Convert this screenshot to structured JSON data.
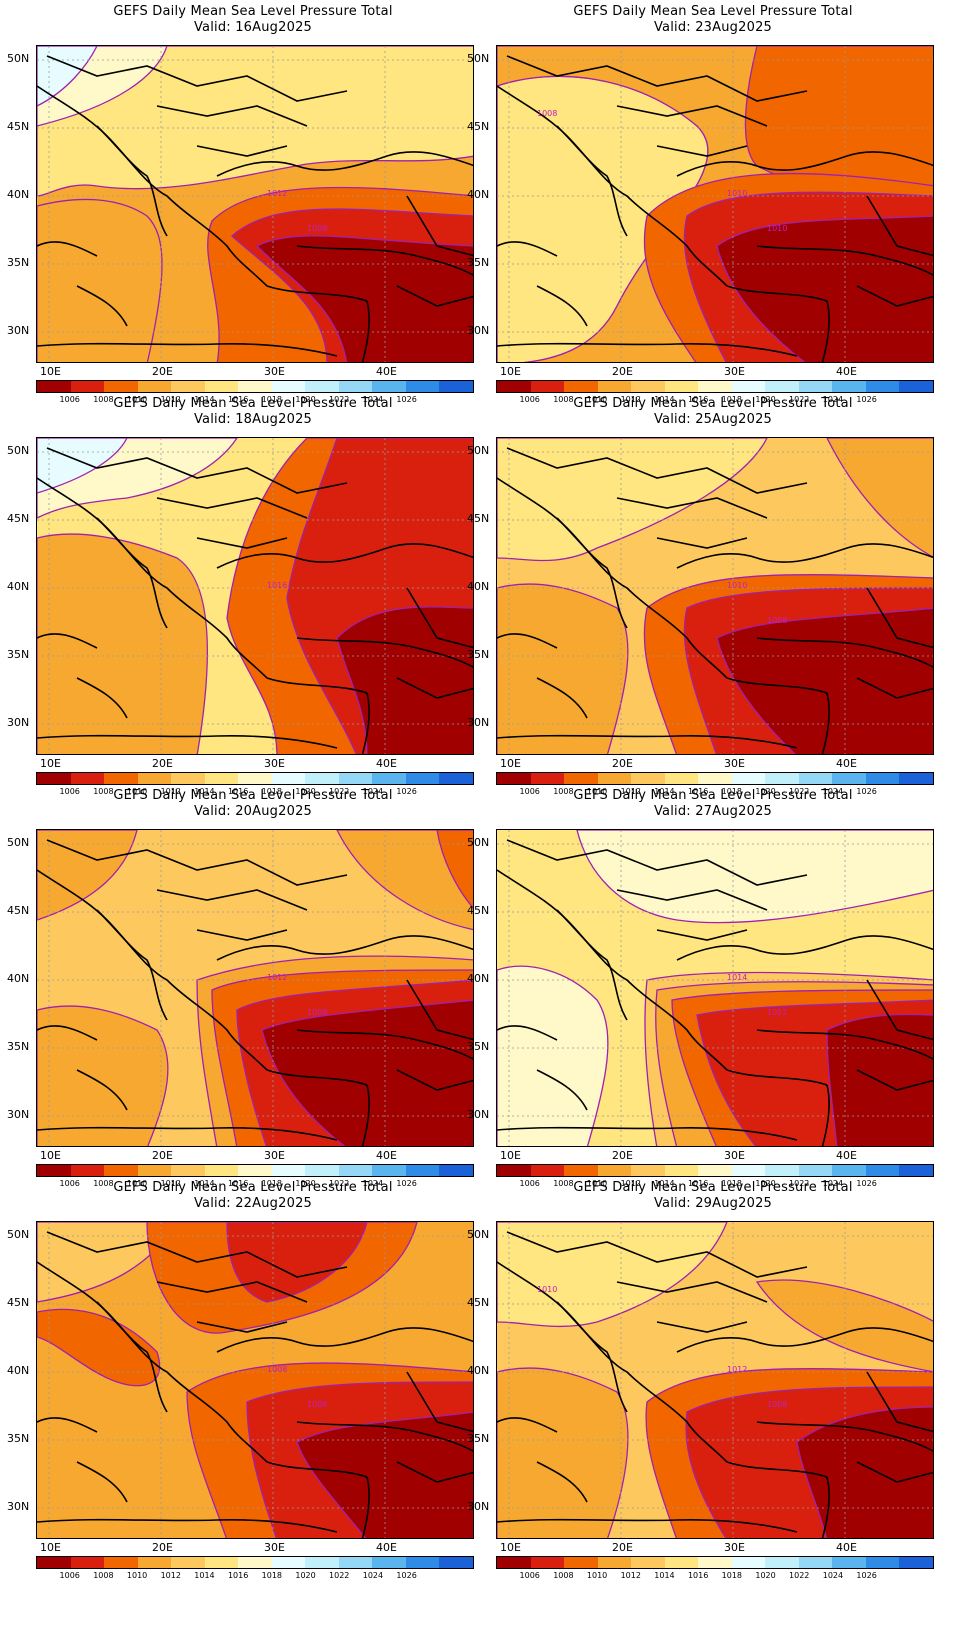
{
  "panels": [
    {
      "title": "GEFS Daily Mean Sea Level Pressure Total",
      "valid": "Valid:  16Aug2025",
      "contour_labels": [
        "1012",
        "1008"
      ]
    },
    {
      "title": "GEFS Daily Mean Sea Level Pressure Total",
      "valid": "Valid:  23Aug2025",
      "contour_labels": [
        "1010",
        "1010",
        "1008"
      ]
    },
    {
      "title": "GEFS Daily Mean Sea Level Pressure Total",
      "valid": "Valid:  18Aug2025",
      "contour_labels": [
        "1016"
      ]
    },
    {
      "title": "GEFS Daily Mean Sea Level Pressure Total",
      "valid": "Valid:  25Aug2025",
      "contour_labels": [
        "1010",
        "1008"
      ]
    },
    {
      "title": "GEFS Daily Mean Sea Level Pressure Total",
      "valid": "Valid:  20Aug2025",
      "contour_labels": [
        "1012",
        "1008"
      ]
    },
    {
      "title": "GEFS Daily Mean Sea Level Pressure Total",
      "valid": "Valid:  27Aug2025",
      "contour_labels": [
        "1014",
        "1012"
      ]
    },
    {
      "title": "GEFS Daily Mean Sea Level Pressure Total",
      "valid": "Valid:  22Aug2025",
      "contour_labels": [
        "1008",
        "1006"
      ]
    },
    {
      "title": "GEFS Daily Mean Sea Level Pressure Total",
      "valid": "Valid:  29Aug2025",
      "contour_labels": [
        "1012",
        "1008",
        "1010"
      ]
    }
  ],
  "lat_labels": [
    "50N",
    "45N",
    "40N",
    "35N",
    "30N"
  ],
  "lon_labels": [
    "10E",
    "20E",
    "30E",
    "40E"
  ],
  "colorbar": {
    "labels": [
      "1006",
      "1008",
      "1010",
      "1012",
      "1014",
      "1016",
      "1018",
      "1020",
      "1022",
      "1024",
      "1026"
    ],
    "colors": [
      "#A00000",
      "#D9200F",
      "#F26600",
      "#F7A830",
      "#FDC95E",
      "#FFE680",
      "#FFF8C8",
      "#E6FCFF",
      "#C2F0FA",
      "#94D8F5",
      "#5AB4EE",
      "#2E8CE6",
      "#1B62D9"
    ]
  }
}
